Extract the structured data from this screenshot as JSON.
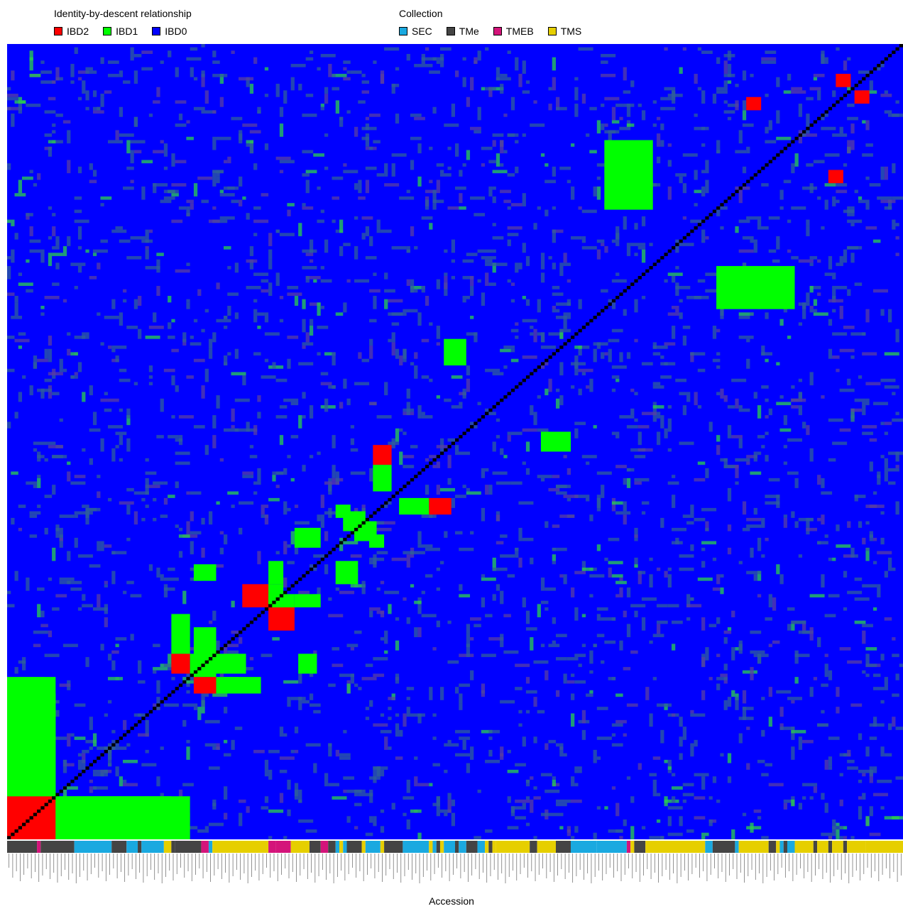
{
  "chart_data": {
    "type": "heatmap",
    "title": "",
    "xlabel": "Accession",
    "ylabel": "",
    "n_accessions": 240,
    "legends": [
      {
        "title": "Identity-by-descent relationship",
        "placement": "top-left",
        "entries": [
          {
            "label": "IBD2",
            "color": "#ff0000"
          },
          {
            "label": "IBD1",
            "color": "#00ff00"
          },
          {
            "label": "IBD0",
            "color": "#0000ff"
          }
        ]
      },
      {
        "title": "Collection",
        "placement": "top-center",
        "entries": [
          {
            "label": "SEC",
            "color": "#1aa9e0"
          },
          {
            "label": "TMe",
            "color": "#444444"
          },
          {
            "label": "TMEB",
            "color": "#d4147a"
          },
          {
            "label": "TMS",
            "color": "#e6cf00"
          }
        ]
      }
    ],
    "diagonal_color": "#000000",
    "background_color": "#0000ff",
    "ibd_blocks": [
      {
        "type": "IBD2",
        "rows": [
          0,
          12
        ],
        "cols": [
          0,
          12
        ]
      },
      {
        "type": "IBD1",
        "rows": [
          0,
          12
        ],
        "cols": [
          13,
          48
        ]
      },
      {
        "type": "IBD1",
        "rows": [
          13,
          43
        ],
        "cols": [
          0,
          12
        ]
      },
      {
        "type": "IBD2",
        "rows": [
          44,
          48
        ],
        "cols": [
          50,
          55
        ]
      },
      {
        "type": "IBD1",
        "rows": [
          44,
          48
        ],
        "cols": [
          56,
          67
        ]
      },
      {
        "type": "IBD1",
        "rows": [
          49,
          63
        ],
        "cols": [
          50,
          55
        ]
      },
      {
        "type": "IBD2",
        "rows": [
          63,
          70
        ],
        "cols": [
          70,
          76
        ]
      },
      {
        "type": "IBD1",
        "rows": [
          70,
          73
        ],
        "cols": [
          70,
          76
        ]
      },
      {
        "type": "IBD1",
        "rows": [
          70,
          73
        ],
        "cols": [
          77,
          83
        ]
      },
      {
        "type": "IBD1",
        "rows": [
          78,
          82
        ],
        "cols": [
          50,
          55
        ]
      },
      {
        "type": "IBD1",
        "rows": [
          88,
          93
        ],
        "cols": [
          77,
          83
        ]
      },
      {
        "type": "IBD1",
        "rows": [
          93,
          98
        ],
        "cols": [
          90,
          95
        ]
      },
      {
        "type": "IBD1",
        "rows": [
          88,
          91
        ],
        "cols": [
          97,
          100
        ]
      },
      {
        "type": "IBD2",
        "rows": [
          98,
          102
        ],
        "cols": [
          113,
          118
        ]
      },
      {
        "type": "IBD1",
        "rows": [
          98,
          102
        ],
        "cols": [
          105,
          112
        ]
      },
      {
        "type": "IBD2",
        "rows": [
          118,
          121
        ],
        "cols": [
          145,
          148
        ]
      },
      {
        "type": "IBD1",
        "rows": [
          117,
          122
        ],
        "cols": [
          143,
          150
        ]
      },
      {
        "type": "IBD2",
        "rows": [
          165,
          169
        ],
        "cols": [
          194,
          198
        ]
      },
      {
        "type": "IBD1",
        "rows": [
          160,
          172
        ],
        "cols": [
          190,
          210
        ]
      },
      {
        "type": "IBD2",
        "rows": [
          198,
          201
        ],
        "cols": [
          220,
          223
        ]
      },
      {
        "type": "IBD2",
        "rows": [
          222,
          225
        ],
        "cols": [
          227,
          230
        ]
      }
    ],
    "collection_segments": [
      {
        "collection": "TMe",
        "start": 0,
        "end": 8
      },
      {
        "collection": "TMEB",
        "start": 8,
        "end": 9
      },
      {
        "collection": "TMe",
        "start": 9,
        "end": 18
      },
      {
        "collection": "SEC",
        "start": 18,
        "end": 28
      },
      {
        "collection": "TMe",
        "start": 28,
        "end": 32
      },
      {
        "collection": "SEC",
        "start": 32,
        "end": 35
      },
      {
        "collection": "TMe",
        "start": 35,
        "end": 36
      },
      {
        "collection": "SEC",
        "start": 36,
        "end": 42
      },
      {
        "collection": "TMS",
        "start": 42,
        "end": 44
      },
      {
        "collection": "TMe",
        "start": 44,
        "end": 45
      },
      {
        "collection": "TMe",
        "start": 45,
        "end": 52
      },
      {
        "collection": "TMEB",
        "start": 52,
        "end": 54
      },
      {
        "collection": "SEC",
        "start": 54,
        "end": 55
      },
      {
        "collection": "TMS",
        "start": 55,
        "end": 70
      },
      {
        "collection": "TMEB",
        "start": 70,
        "end": 72
      },
      {
        "collection": "TMEB",
        "start": 72,
        "end": 76
      },
      {
        "collection": "TMS",
        "start": 76,
        "end": 81
      },
      {
        "collection": "TMe",
        "start": 81,
        "end": 84
      },
      {
        "collection": "TMEB",
        "start": 84,
        "end": 86
      },
      {
        "collection": "TMe",
        "start": 86,
        "end": 88
      },
      {
        "collection": "SEC",
        "start": 88,
        "end": 89
      },
      {
        "collection": "TMS",
        "start": 89,
        "end": 90
      },
      {
        "collection": "SEC",
        "start": 90,
        "end": 91
      },
      {
        "collection": "TMe",
        "start": 91,
        "end": 95
      },
      {
        "collection": "TMS",
        "start": 95,
        "end": 96
      },
      {
        "collection": "SEC",
        "start": 96,
        "end": 100
      },
      {
        "collection": "TMS",
        "start": 100,
        "end": 101
      },
      {
        "collection": "TMe",
        "start": 101,
        "end": 106
      },
      {
        "collection": "SEC",
        "start": 106,
        "end": 113
      },
      {
        "collection": "TMS",
        "start": 113,
        "end": 114
      },
      {
        "collection": "SEC",
        "start": 114,
        "end": 115
      },
      {
        "collection": "TMe",
        "start": 115,
        "end": 116
      },
      {
        "collection": "TMS",
        "start": 116,
        "end": 117
      },
      {
        "collection": "SEC",
        "start": 117,
        "end": 120
      },
      {
        "collection": "TMe",
        "start": 120,
        "end": 121
      },
      {
        "collection": "SEC",
        "start": 121,
        "end": 123
      },
      {
        "collection": "TMe",
        "start": 123,
        "end": 126
      },
      {
        "collection": "SEC",
        "start": 126,
        "end": 128
      },
      {
        "collection": "TMS",
        "start": 128,
        "end": 129
      },
      {
        "collection": "TMe",
        "start": 129,
        "end": 130
      },
      {
        "collection": "TMS",
        "start": 130,
        "end": 131
      },
      {
        "collection": "TMS",
        "start": 131,
        "end": 140
      },
      {
        "collection": "TMe",
        "start": 140,
        "end": 142
      },
      {
        "collection": "TMS",
        "start": 142,
        "end": 147
      },
      {
        "collection": "TMe",
        "start": 147,
        "end": 151
      },
      {
        "collection": "SEC",
        "start": 151,
        "end": 158
      },
      {
        "collection": "SEC",
        "start": 158,
        "end": 166
      },
      {
        "collection": "TMEB",
        "start": 166,
        "end": 167
      },
      {
        "collection": "TMS",
        "start": 167,
        "end": 168
      },
      {
        "collection": "TMe",
        "start": 168,
        "end": 171
      },
      {
        "collection": "TMS",
        "start": 171,
        "end": 187
      },
      {
        "collection": "SEC",
        "start": 187,
        "end": 189
      },
      {
        "collection": "TMe",
        "start": 189,
        "end": 195
      },
      {
        "collection": "SEC",
        "start": 195,
        "end": 196
      },
      {
        "collection": "TMS",
        "start": 196,
        "end": 204
      },
      {
        "collection": "TMe",
        "start": 204,
        "end": 206
      },
      {
        "collection": "TMS",
        "start": 206,
        "end": 207
      },
      {
        "collection": "SEC",
        "start": 207,
        "end": 208
      },
      {
        "collection": "TMe",
        "start": 208,
        "end": 209
      },
      {
        "collection": "SEC",
        "start": 209,
        "end": 211
      },
      {
        "collection": "TMS",
        "start": 211,
        "end": 216
      },
      {
        "collection": "TMe",
        "start": 216,
        "end": 217
      },
      {
        "collection": "TMS",
        "start": 217,
        "end": 220
      },
      {
        "collection": "TMe",
        "start": 220,
        "end": 221
      },
      {
        "collection": "TMS",
        "start": 221,
        "end": 224
      },
      {
        "collection": "TMe",
        "start": 224,
        "end": 225
      },
      {
        "collection": "TMS",
        "start": 225,
        "end": 230
      },
      {
        "collection": "TMS",
        "start": 230,
        "end": 240
      }
    ]
  }
}
